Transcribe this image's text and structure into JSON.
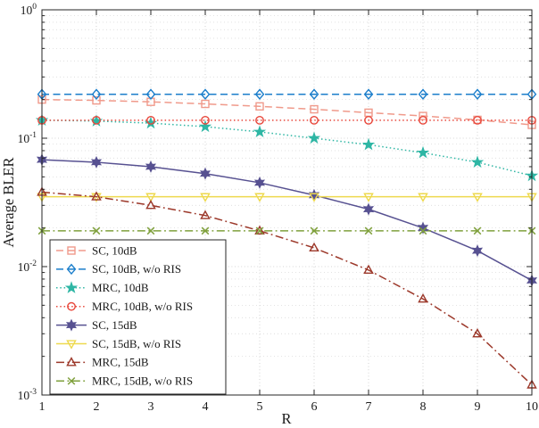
{
  "chart_data": {
    "type": "line",
    "title": "",
    "xlabel": "R",
    "ylabel": "Average BLER",
    "xlim": [
      1,
      10
    ],
    "x_ticks": [
      1,
      2,
      3,
      4,
      5,
      6,
      7,
      8,
      9,
      10
    ],
    "y_scale": "log",
    "ylog_exponents": [
      0,
      -1,
      -2,
      -3
    ],
    "ylim": [
      0.001,
      1
    ],
    "grid": "major-and-minor-dotted",
    "legend_position": "lower-left",
    "axis_color": "#262626",
    "x": [
      1,
      2,
      3,
      4,
      5,
      6,
      7,
      8,
      9,
      10
    ],
    "series": [
      {
        "name": "SC, 10dB",
        "color": "#f09a8b",
        "linestyle": "dashed",
        "marker": "square",
        "values": [
          0.2,
          0.197,
          0.192,
          0.185,
          0.177,
          0.168,
          0.158,
          0.149,
          0.139,
          0.127
        ]
      },
      {
        "name": "SC, 10dB, w/o RIS",
        "color": "#1b7ecb",
        "linestyle": "dashed",
        "marker": "diamond",
        "values": [
          0.22,
          0.22,
          0.22,
          0.22,
          0.22,
          0.22,
          0.22,
          0.22,
          0.22,
          0.22
        ]
      },
      {
        "name": "MRC, 10dB",
        "color": "#2eb6a4",
        "linestyle": "dotted",
        "marker": "pentagram",
        "values": [
          0.138,
          0.136,
          0.131,
          0.123,
          0.112,
          0.1,
          0.089,
          0.077,
          0.065,
          0.051
        ]
      },
      {
        "name": "MRC, 10dB, w/o RIS",
        "color": "#e8483c",
        "linestyle": "dotted",
        "marker": "circle",
        "values": [
          0.138,
          0.138,
          0.138,
          0.138,
          0.138,
          0.138,
          0.138,
          0.138,
          0.138,
          0.138
        ]
      },
      {
        "name": "SC, 15dB",
        "color": "#575191",
        "linestyle": "solid",
        "marker": "hexagram",
        "values": [
          0.068,
          0.065,
          0.06,
          0.053,
          0.045,
          0.036,
          0.028,
          0.02,
          0.0133,
          0.0078
        ]
      },
      {
        "name": "SC, 15dB, w/o RIS",
        "color": "#eed94e",
        "linestyle": "solid",
        "marker": "triangle-down",
        "values": [
          0.035,
          0.035,
          0.035,
          0.035,
          0.035,
          0.035,
          0.035,
          0.035,
          0.035,
          0.035
        ]
      },
      {
        "name": "MRC, 15dB",
        "color": "#9c382a",
        "linestyle": "dashdot",
        "marker": "triangle-up",
        "values": [
          0.038,
          0.035,
          0.03,
          0.025,
          0.019,
          0.014,
          0.0094,
          0.0056,
          0.003,
          0.0012
        ]
      },
      {
        "name": "MRC, 15dB, w/o RIS",
        "color": "#7fa03c",
        "linestyle": "dashdot",
        "marker": "x",
        "values": [
          0.019,
          0.019,
          0.019,
          0.019,
          0.019,
          0.019,
          0.019,
          0.019,
          0.019,
          0.019
        ]
      }
    ]
  }
}
